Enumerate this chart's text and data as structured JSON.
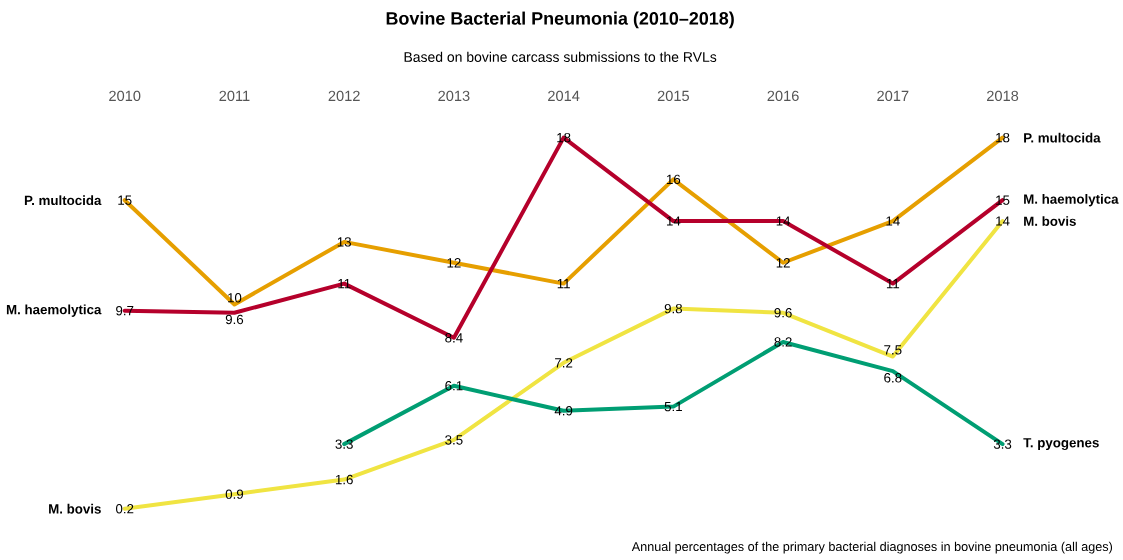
{
  "chart_data": {
    "type": "line",
    "title": "Bovine Bacterial Pneumonia (2010–2018)",
    "subtitle": "Based on bovine carcass submissions to the RVLs",
    "categories": [
      "2010",
      "2011",
      "2012",
      "2013",
      "2014",
      "2015",
      "2016",
      "2017",
      "2018"
    ],
    "series": [
      {
        "name": "P. multocida",
        "color": "#e69f00",
        "values": [
          15,
          10,
          13,
          12,
          11,
          16,
          12,
          14,
          18
        ]
      },
      {
        "name": "M. haemolytica",
        "color": "#b5002b",
        "values": [
          9.7,
          9.6,
          11,
          8.4,
          18,
          14,
          14,
          11,
          15
        ]
      },
      {
        "name": "M. bovis",
        "color": "#f0e442",
        "values": [
          0.2,
          0.9,
          1.6,
          3.5,
          7.2,
          9.8,
          9.6,
          7.5,
          14
        ]
      },
      {
        "name": "T. pyogenes",
        "color": "#009e73",
        "values": [
          null,
          null,
          3.3,
          6.1,
          4.9,
          5.1,
          8.2,
          6.8,
          3.3
        ]
      }
    ],
    "data_labels": true,
    "annotations": [
      "Annual percentages of the primary bacterial diagnoses in bovine pneumonia (all ages)"
    ]
  }
}
